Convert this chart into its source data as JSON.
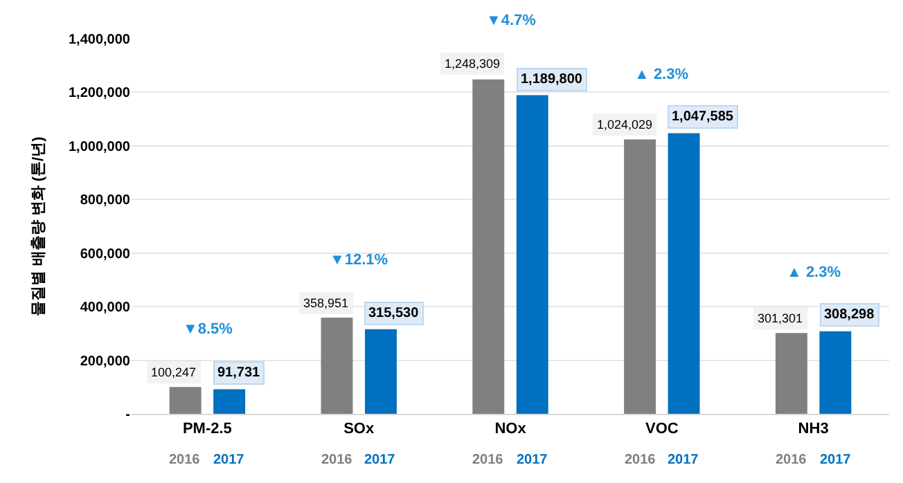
{
  "chart_data": {
    "type": "bar",
    "ylabel": "물질별 배출량 변화 (톤/년)",
    "categories": [
      "PM-2.5",
      "SOx",
      "NOx",
      "VOC",
      "NH3"
    ],
    "series": [
      {
        "name": "2016",
        "color": "#808080",
        "values": [
          100247,
          358951,
          1248309,
          1024029,
          301301
        ],
        "value_labels": [
          "100,247",
          "358,951",
          "1,248,309",
          "1,024,029",
          "301,301"
        ]
      },
      {
        "name": "2017",
        "color": "#0070c0",
        "values": [
          91731,
          315530,
          1189800,
          1047585,
          308298
        ],
        "value_labels": [
          "91,731",
          "315,530",
          "1,189,800",
          "1,047,585",
          "308,298"
        ]
      }
    ],
    "ylim": [
      0,
      1400000
    ],
    "yticks": [
      {
        "value": 0,
        "label": "-"
      },
      {
        "value": 200000,
        "label": "200,000"
      },
      {
        "value": 400000,
        "label": "400,000"
      },
      {
        "value": 600000,
        "label": "600,000"
      },
      {
        "value": 800000,
        "label": "800,000"
      },
      {
        "value": 1000000,
        "label": "1,000,000"
      },
      {
        "value": 1200000,
        "label": "1,200,000"
      },
      {
        "value": 1400000,
        "label": "1,400,000"
      }
    ],
    "grid": "y",
    "legend": false,
    "annotations": [
      "▼8.5%",
      "▼12.1%",
      "▼4.7%",
      "▲ 2.3%",
      "▲ 2.3%"
    ]
  }
}
